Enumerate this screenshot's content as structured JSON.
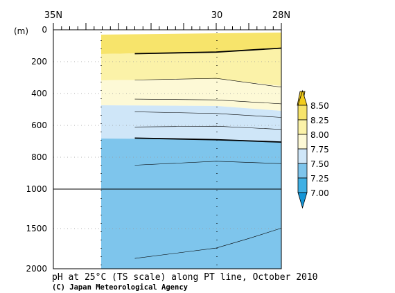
{
  "chart_data": {
    "type": "contour-section",
    "title": "pH at 25°C (TS scale) along PT line, October 2010",
    "credit": "(C) Japan Meteorological Agency",
    "x_axis": {
      "ticks": [
        {
          "label": "35N",
          "lat": 35
        },
        {
          "label": "30",
          "lat": 30
        },
        {
          "label": "28N",
          "lat": 28
        }
      ],
      "range": [
        35,
        28
      ]
    },
    "y_axis": {
      "unit_label": "(m)",
      "ticks_upper": [
        "0",
        "200",
        "400",
        "600",
        "800",
        "1000"
      ],
      "ticks_lower": [
        "1500",
        "2000"
      ],
      "range": [
        0,
        2000
      ],
      "scale_break_depth": 1000
    },
    "data_start_lat": 32.5,
    "colorbar": {
      "levels": [
        "8.50",
        "8.25",
        "8.00",
        "7.75",
        "7.50",
        "7.25",
        "7.00"
      ],
      "colors": [
        "#f2cc1d",
        "#f7e46b",
        "#fbf2a8",
        "#fdf9d6",
        "#cfe6f8",
        "#a6d3f4",
        "#7ec5ec",
        "#40b0e4",
        "#1495d6"
      ]
    },
    "contours": [
      {
        "level": 8.0,
        "bold": true,
        "points": [
          [
            32.5,
            150
          ],
          [
            30,
            140
          ],
          [
            28,
            115
          ]
        ]
      },
      {
        "level": 7.9,
        "bold": false,
        "points": [
          [
            32.5,
            315
          ],
          [
            30,
            305
          ],
          [
            28,
            360
          ]
        ]
      },
      {
        "level": 7.85,
        "bold": false,
        "points": [
          [
            32.5,
            435
          ],
          [
            30,
            440
          ],
          [
            28,
            465
          ]
        ]
      },
      {
        "level": 7.7,
        "bold": false,
        "points": [
          [
            32.5,
            515
          ],
          [
            30,
            525
          ],
          [
            28,
            550
          ]
        ]
      },
      {
        "level": 7.6,
        "bold": false,
        "points": [
          [
            32.5,
            610
          ],
          [
            30,
            605
          ],
          [
            28,
            625
          ]
        ]
      },
      {
        "level": 7.5,
        "bold": true,
        "points": [
          [
            32.5,
            680
          ],
          [
            30,
            690
          ],
          [
            28,
            705
          ]
        ]
      },
      {
        "level": 7.4,
        "bold": false,
        "points": [
          [
            32.5,
            850
          ],
          [
            30,
            825
          ],
          [
            28,
            840
          ]
        ]
      },
      {
        "level": 7.35,
        "bold": false,
        "points": [
          [
            32.5,
            1870
          ],
          [
            30,
            1740
          ],
          [
            29,
            1620
          ],
          [
            28,
            1490
          ]
        ]
      }
    ]
  }
}
